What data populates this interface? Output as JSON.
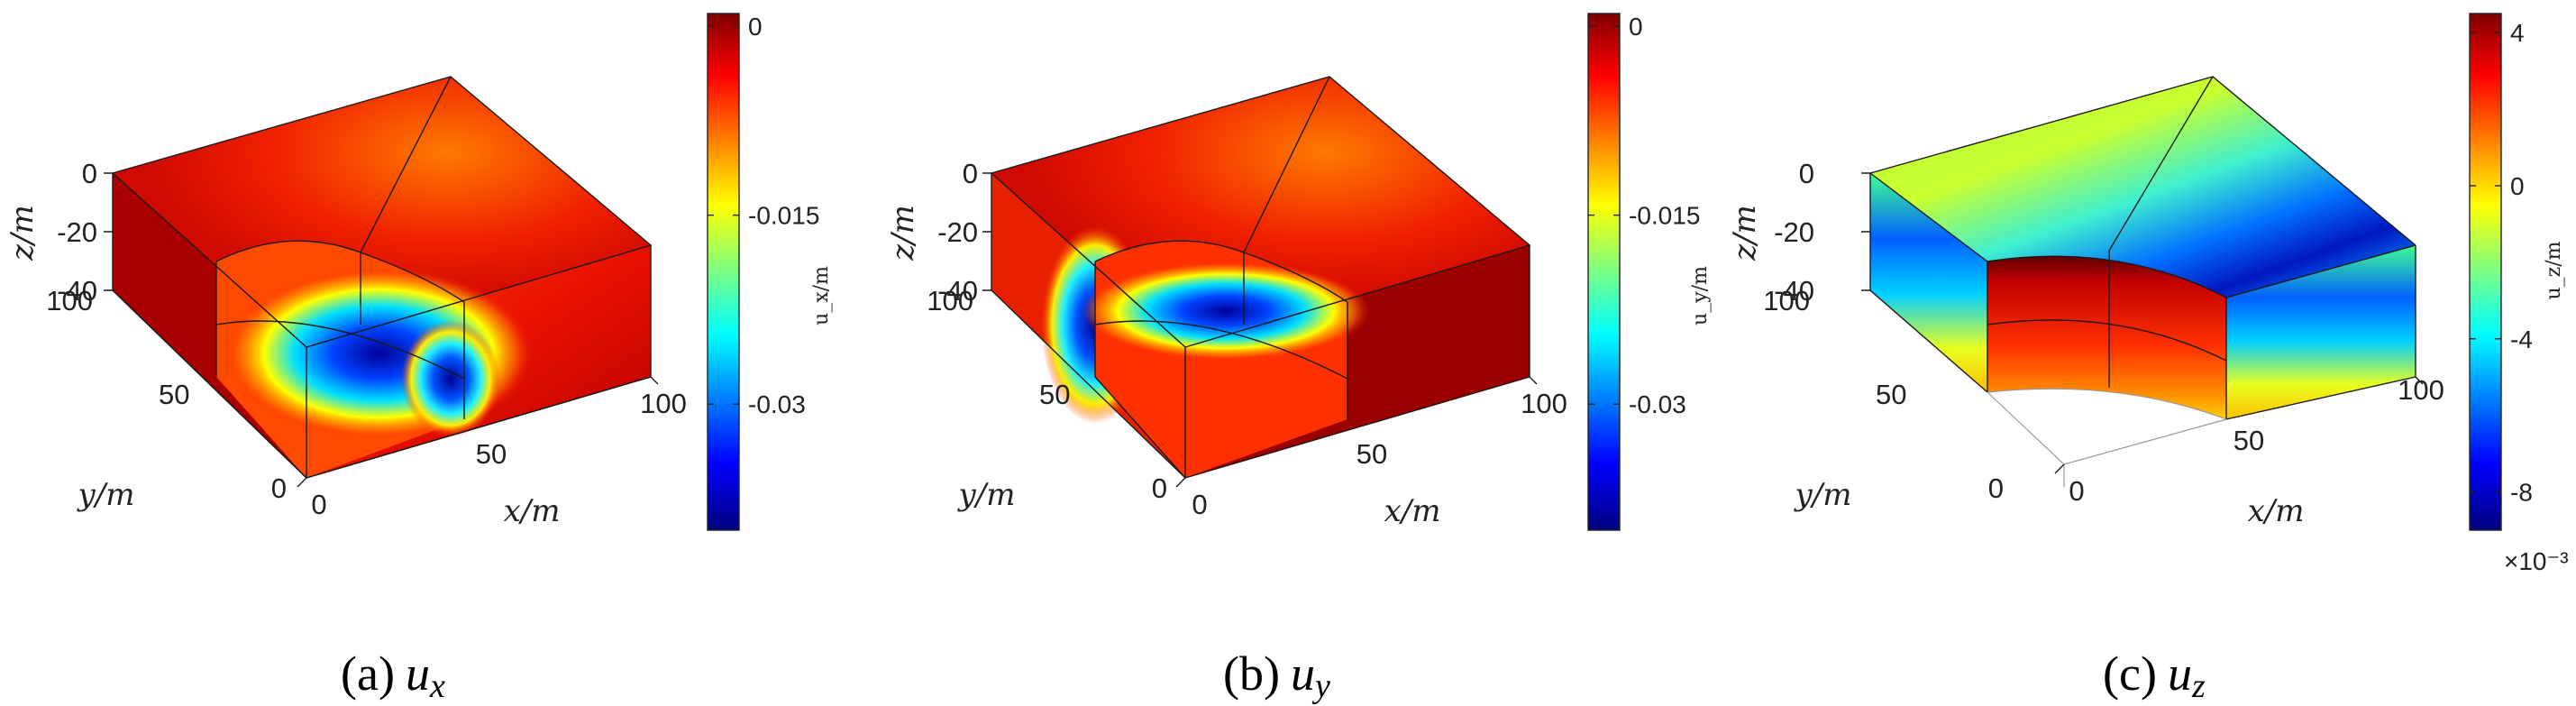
{
  "chart_data": [
    {
      "type": "surface3d",
      "panel_id": "a",
      "caption": {
        "prefix": "(a)",
        "var": "u",
        "sub": "x"
      },
      "xlabel": "x/m",
      "ylabel": "y/m",
      "zlabel": "z/m",
      "x_ticks": [
        "0",
        "50",
        "100"
      ],
      "y_ticks": [
        "0",
        "50",
        "100"
      ],
      "z_ticks": [
        "0",
        "-20",
        "-40"
      ],
      "xlim": [
        0,
        100
      ],
      "ylim": [
        0,
        100
      ],
      "zlim": [
        -40,
        0
      ],
      "colorbar": {
        "label": "u_x/m",
        "ticks": [
          "0",
          "-0.015",
          "-0.03"
        ],
        "tick_values": [
          0,
          -0.015,
          -0.03
        ],
        "range": [
          -0.04,
          0.001
        ],
        "exponent": ""
      }
    },
    {
      "type": "surface3d",
      "panel_id": "b",
      "caption": {
        "prefix": "(b)",
        "var": "u",
        "sub": "y"
      },
      "xlabel": "x/m",
      "ylabel": "y/m",
      "zlabel": "z/m",
      "x_ticks": [
        "0",
        "50",
        "100"
      ],
      "y_ticks": [
        "0",
        "50",
        "100"
      ],
      "z_ticks": [
        "0",
        "-20",
        "-40"
      ],
      "xlim": [
        0,
        100
      ],
      "ylim": [
        0,
        100
      ],
      "zlim": [
        -40,
        0
      ],
      "colorbar": {
        "label": "u_y/m",
        "ticks": [
          "0",
          "-0.015",
          "-0.03"
        ],
        "tick_values": [
          0,
          -0.015,
          -0.03
        ],
        "range": [
          -0.04,
          0.001
        ],
        "exponent": ""
      }
    },
    {
      "type": "surface3d",
      "panel_id": "c",
      "caption": {
        "prefix": "(c)",
        "var": "u",
        "sub": "z"
      },
      "xlabel": "x/m",
      "ylabel": "y/m",
      "zlabel": "z/m",
      "x_ticks": [
        "0",
        "50",
        "100"
      ],
      "y_ticks": [
        "0",
        "50",
        "100"
      ],
      "z_ticks": [
        "0",
        "-20",
        "-40"
      ],
      "xlim": [
        0,
        100
      ],
      "ylim": [
        0,
        100
      ],
      "zlim": [
        -40,
        0
      ],
      "colorbar": {
        "label": "u_z/m",
        "ticks": [
          "4",
          "0",
          "-4",
          "-8"
        ],
        "tick_values": [
          4,
          0,
          -4,
          -8
        ],
        "range": [
          -9,
          4.5
        ],
        "exponent": "×10⁻³"
      }
    }
  ]
}
